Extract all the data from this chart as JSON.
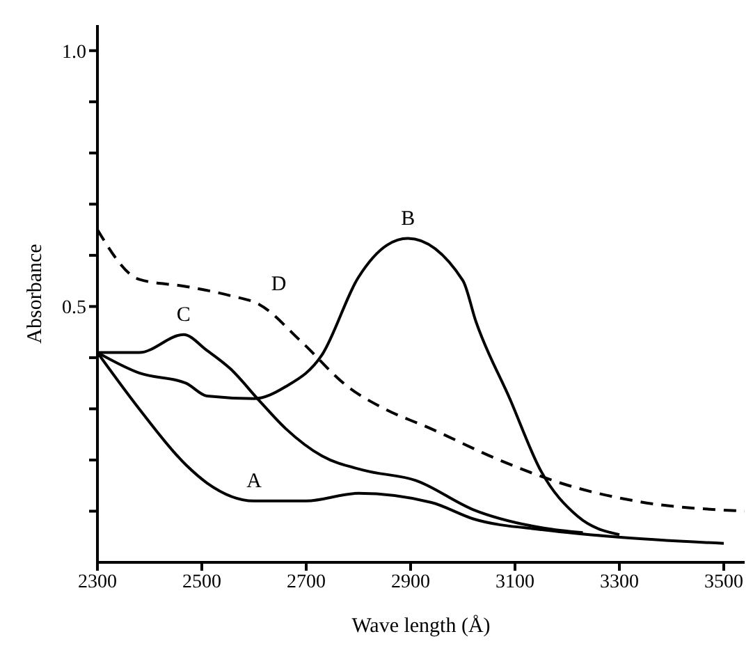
{
  "chart_data": {
    "type": "line",
    "xlabel": "Wave length (Å)",
    "ylabel": "Absorbance",
    "xlim": [
      2300,
      3540
    ],
    "xticks": [
      2300,
      2500,
      2700,
      2900,
      3100,
      3300,
      3500
    ],
    "ylim": [
      0,
      1.05
    ],
    "yticks": [
      {
        "value": 0.1,
        "label": null
      },
      {
        "value": 0.2,
        "label": null
      },
      {
        "value": 0.3,
        "label": null
      },
      {
        "value": 0.4,
        "label": null
      },
      0.5,
      {
        "value": 0.6,
        "label": null
      },
      {
        "value": 0.7,
        "label": null
      },
      {
        "value": 0.8,
        "label": null
      },
      {
        "value": 0.9,
        "label": null
      },
      {
        "value": 1.0,
        "label": "1.0"
      }
    ],
    "grid": false,
    "marker": "none",
    "series": [
      {
        "name": "A",
        "color": "#000000",
        "line_style": "solid",
        "x": [
          2300,
          2380,
          2470,
          2510,
          2600,
          2700,
          2800,
          2940,
          3020,
          3160,
          3290,
          3500
        ],
        "values": [
          0.41,
          0.3,
          0.19,
          0.155,
          0.12,
          0.12,
          0.135,
          0.117,
          0.085,
          0.063,
          0.05,
          0.037
        ]
      },
      {
        "name": "B",
        "color": "#000000",
        "line_style": "solid",
        "x": [
          2300,
          2380,
          2470,
          2510,
          2600,
          2660,
          2730,
          2800,
          2855,
          2895,
          3000,
          3025,
          3090,
          3150,
          3220,
          3300
        ],
        "values": [
          0.41,
          0.37,
          0.35,
          0.325,
          0.32,
          0.343,
          0.405,
          0.557,
          0.62,
          0.633,
          0.551,
          0.471,
          0.32,
          0.178,
          0.09,
          0.054
        ]
      },
      {
        "name": "C",
        "color": "#000000",
        "line_style": "solid",
        "x": [
          2300,
          2380,
          2465,
          2510,
          2555,
          2610,
          2660,
          2730,
          2810,
          2910,
          3020,
          3155,
          3230
        ],
        "values": [
          0.41,
          0.41,
          0.445,
          0.414,
          0.378,
          0.316,
          0.262,
          0.208,
          0.18,
          0.16,
          0.103,
          0.067,
          0.058
        ]
      },
      {
        "name": "D",
        "color": "#000000",
        "line_style": "dashed",
        "x": [
          2300,
          2380,
          2470,
          2555,
          2610,
          2690,
          2780,
          2850,
          2935,
          3070,
          3200,
          3330,
          3540
        ],
        "values": [
          0.65,
          0.553,
          0.539,
          0.521,
          0.504,
          0.432,
          0.343,
          0.3,
          0.263,
          0.2,
          0.151,
          0.12,
          0.1
        ]
      }
    ]
  }
}
